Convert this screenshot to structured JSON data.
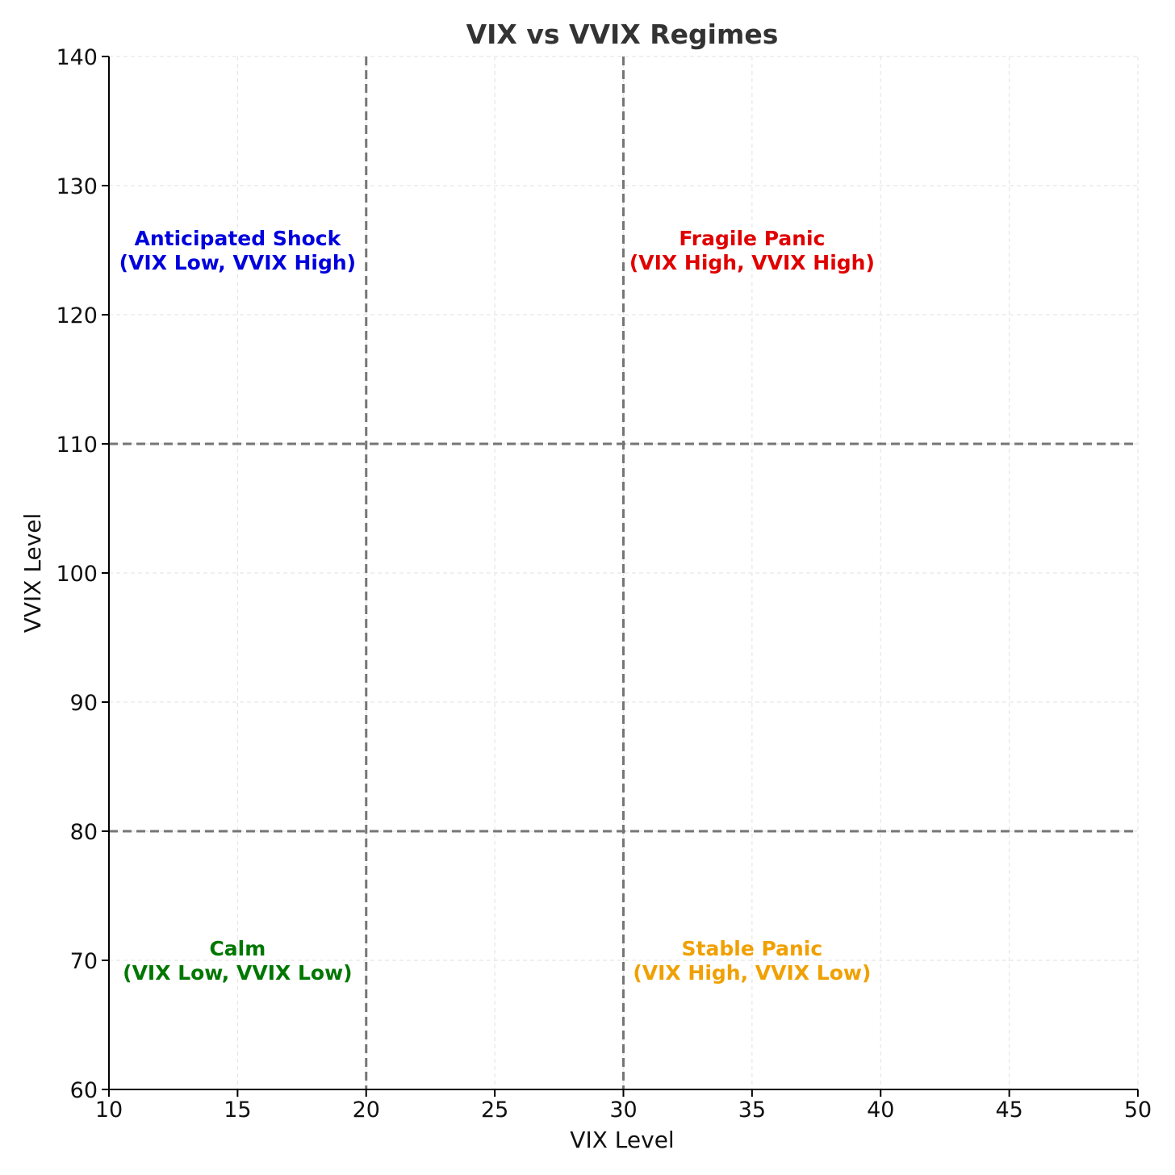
{
  "chart_data": {
    "type": "scatter",
    "title": "VIX vs VVIX Regimes",
    "xlabel": "VIX Level",
    "ylabel": "VVIX Level",
    "xlim": [
      10,
      50
    ],
    "ylim": [
      60,
      140
    ],
    "xticks": [
      10,
      15,
      20,
      25,
      30,
      35,
      40,
      45,
      50
    ],
    "yticks": [
      60,
      70,
      80,
      90,
      100,
      110,
      120,
      130,
      140
    ],
    "grid": true,
    "thresholds": {
      "vertical": [
        20,
        30
      ],
      "horizontal": [
        80,
        110
      ]
    },
    "regions": [
      {
        "name": "Anticipated Shock",
        "detail": "(VIX Low, VVIX High)",
        "x": 15,
        "y": 125,
        "color": "#0000dd"
      },
      {
        "name": "Fragile Panic",
        "detail": "(VIX High, VVIX High)",
        "x": 35,
        "y": 125,
        "color": "#e00000"
      },
      {
        "name": "Calm",
        "detail": "(VIX Low, VVIX Low)",
        "x": 15,
        "y": 70,
        "color": "#007700"
      },
      {
        "name": "Stable Panic",
        "detail": "(VIX High, VVIX Low)",
        "x": 35,
        "y": 70,
        "color": "#f0a000"
      }
    ]
  }
}
